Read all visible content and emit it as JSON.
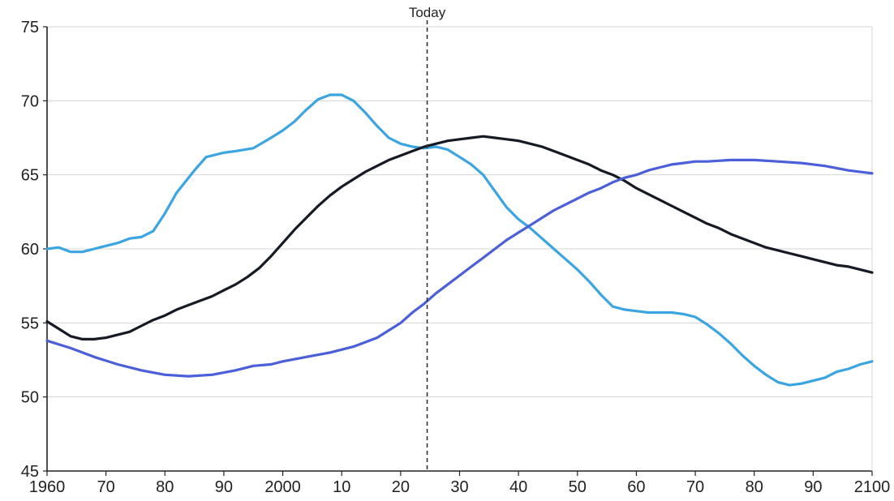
{
  "chart_data": {
    "type": "line",
    "title": "",
    "xlabel": "",
    "ylabel": "",
    "xlim": [
      1960,
      2100
    ],
    "ylim": [
      45,
      75
    ],
    "grid": true,
    "legend": "none",
    "x_ticks": [
      1960,
      1970,
      1980,
      1990,
      2000,
      2010,
      2020,
      2030,
      2040,
      2050,
      2060,
      2070,
      2080,
      2090,
      2100
    ],
    "x_tick_labels": [
      "1960",
      "70",
      "80",
      "90",
      "2000",
      "10",
      "20",
      "30",
      "40",
      "50",
      "60",
      "70",
      "80",
      "90",
      "2100"
    ],
    "y_ticks": [
      45,
      50,
      55,
      60,
      65,
      70,
      75
    ],
    "y_tick_labels": [
      "45",
      "50",
      "55",
      "60",
      "65",
      "70",
      "75"
    ],
    "annotation": {
      "label": "Today",
      "x": 2024.5,
      "style": "dashed"
    },
    "series": [
      {
        "color": "#3aa5e0",
        "points": [
          [
            1960,
            60.0
          ],
          [
            1962,
            60.1
          ],
          [
            1964,
            59.8
          ],
          [
            1966,
            59.8
          ],
          [
            1968,
            60.0
          ],
          [
            1970,
            60.2
          ],
          [
            1972,
            60.4
          ],
          [
            1974,
            60.7
          ],
          [
            1976,
            60.8
          ],
          [
            1978,
            61.2
          ],
          [
            1980,
            62.4
          ],
          [
            1982,
            63.8
          ],
          [
            1985,
            65.3
          ],
          [
            1987,
            66.2
          ],
          [
            1990,
            66.5
          ],
          [
            1992,
            66.6
          ],
          [
            1995,
            66.8
          ],
          [
            1998,
            67.5
          ],
          [
            2000,
            68.0
          ],
          [
            2002,
            68.6
          ],
          [
            2004,
            69.4
          ],
          [
            2006,
            70.1
          ],
          [
            2008,
            70.4
          ],
          [
            2010,
            70.4
          ],
          [
            2012,
            70.0
          ],
          [
            2014,
            69.2
          ],
          [
            2016,
            68.3
          ],
          [
            2018,
            67.5
          ],
          [
            2020,
            67.1
          ],
          [
            2022,
            66.9
          ],
          [
            2024,
            66.8
          ],
          [
            2026,
            66.9
          ],
          [
            2028,
            66.7
          ],
          [
            2030,
            66.2
          ],
          [
            2032,
            65.7
          ],
          [
            2034,
            65.0
          ],
          [
            2036,
            63.9
          ],
          [
            2038,
            62.8
          ],
          [
            2040,
            62.0
          ],
          [
            2042,
            61.4
          ],
          [
            2044,
            60.7
          ],
          [
            2046,
            60.0
          ],
          [
            2048,
            59.3
          ],
          [
            2050,
            58.6
          ],
          [
            2052,
            57.8
          ],
          [
            2054,
            56.9
          ],
          [
            2056,
            56.1
          ],
          [
            2058,
            55.9
          ],
          [
            2060,
            55.8
          ],
          [
            2062,
            55.7
          ],
          [
            2064,
            55.7
          ],
          [
            2066,
            55.7
          ],
          [
            2068,
            55.6
          ],
          [
            2070,
            55.4
          ],
          [
            2072,
            54.9
          ],
          [
            2074,
            54.3
          ],
          [
            2076,
            53.6
          ],
          [
            2078,
            52.8
          ],
          [
            2080,
            52.1
          ],
          [
            2082,
            51.5
          ],
          [
            2084,
            51.0
          ],
          [
            2086,
            50.8
          ],
          [
            2088,
            50.9
          ],
          [
            2090,
            51.1
          ],
          [
            2092,
            51.3
          ],
          [
            2094,
            51.7
          ],
          [
            2096,
            51.9
          ],
          [
            2098,
            52.2
          ],
          [
            2100,
            52.4
          ]
        ]
      },
      {
        "color": "#151a24",
        "points": [
          [
            1960,
            55.1
          ],
          [
            1962,
            54.6
          ],
          [
            1964,
            54.1
          ],
          [
            1966,
            53.9
          ],
          [
            1968,
            53.9
          ],
          [
            1970,
            54.0
          ],
          [
            1972,
            54.2
          ],
          [
            1974,
            54.4
          ],
          [
            1976,
            54.8
          ],
          [
            1978,
            55.2
          ],
          [
            1980,
            55.5
          ],
          [
            1982,
            55.9
          ],
          [
            1984,
            56.2
          ],
          [
            1986,
            56.5
          ],
          [
            1988,
            56.8
          ],
          [
            1990,
            57.2
          ],
          [
            1992,
            57.6
          ],
          [
            1994,
            58.1
          ],
          [
            1996,
            58.7
          ],
          [
            1998,
            59.5
          ],
          [
            2000,
            60.4
          ],
          [
            2002,
            61.3
          ],
          [
            2004,
            62.1
          ],
          [
            2006,
            62.9
          ],
          [
            2008,
            63.6
          ],
          [
            2010,
            64.2
          ],
          [
            2012,
            64.7
          ],
          [
            2014,
            65.2
          ],
          [
            2016,
            65.6
          ],
          [
            2018,
            66.0
          ],
          [
            2020,
            66.3
          ],
          [
            2022,
            66.6
          ],
          [
            2024,
            66.9
          ],
          [
            2026,
            67.1
          ],
          [
            2028,
            67.3
          ],
          [
            2030,
            67.4
          ],
          [
            2032,
            67.5
          ],
          [
            2034,
            67.6
          ],
          [
            2036,
            67.5
          ],
          [
            2038,
            67.4
          ],
          [
            2040,
            67.3
          ],
          [
            2042,
            67.1
          ],
          [
            2044,
            66.9
          ],
          [
            2046,
            66.6
          ],
          [
            2048,
            66.3
          ],
          [
            2050,
            66.0
          ],
          [
            2052,
            65.7
          ],
          [
            2054,
            65.3
          ],
          [
            2056,
            65.0
          ],
          [
            2058,
            64.6
          ],
          [
            2060,
            64.1
          ],
          [
            2062,
            63.7
          ],
          [
            2064,
            63.3
          ],
          [
            2066,
            62.9
          ],
          [
            2068,
            62.5
          ],
          [
            2070,
            62.1
          ],
          [
            2072,
            61.7
          ],
          [
            2074,
            61.4
          ],
          [
            2076,
            61.0
          ],
          [
            2078,
            60.7
          ],
          [
            2080,
            60.4
          ],
          [
            2082,
            60.1
          ],
          [
            2084,
            59.9
          ],
          [
            2086,
            59.7
          ],
          [
            2088,
            59.5
          ],
          [
            2090,
            59.3
          ],
          [
            2092,
            59.1
          ],
          [
            2094,
            58.9
          ],
          [
            2096,
            58.8
          ],
          [
            2098,
            58.6
          ],
          [
            2100,
            58.4
          ]
        ]
      },
      {
        "color": "#4a5fd8",
        "points": [
          [
            1960,
            53.8
          ],
          [
            1964,
            53.3
          ],
          [
            1968,
            52.7
          ],
          [
            1972,
            52.2
          ],
          [
            1976,
            51.8
          ],
          [
            1980,
            51.5
          ],
          [
            1984,
            51.4
          ],
          [
            1988,
            51.5
          ],
          [
            1992,
            51.8
          ],
          [
            1995,
            52.1
          ],
          [
            1998,
            52.2
          ],
          [
            2000,
            52.4
          ],
          [
            2004,
            52.7
          ],
          [
            2008,
            53.0
          ],
          [
            2012,
            53.4
          ],
          [
            2016,
            54.0
          ],
          [
            2018,
            54.5
          ],
          [
            2020,
            55.0
          ],
          [
            2022,
            55.7
          ],
          [
            2024,
            56.3
          ],
          [
            2026,
            57.0
          ],
          [
            2028,
            57.6
          ],
          [
            2030,
            58.2
          ],
          [
            2032,
            58.8
          ],
          [
            2034,
            59.4
          ],
          [
            2036,
            60.0
          ],
          [
            2038,
            60.6
          ],
          [
            2040,
            61.1
          ],
          [
            2042,
            61.6
          ],
          [
            2044,
            62.1
          ],
          [
            2046,
            62.6
          ],
          [
            2048,
            63.0
          ],
          [
            2050,
            63.4
          ],
          [
            2052,
            63.8
          ],
          [
            2054,
            64.1
          ],
          [
            2056,
            64.5
          ],
          [
            2058,
            64.8
          ],
          [
            2060,
            65.0
          ],
          [
            2062,
            65.3
          ],
          [
            2064,
            65.5
          ],
          [
            2066,
            65.7
          ],
          [
            2068,
            65.8
          ],
          [
            2070,
            65.9
          ],
          [
            2072,
            65.9
          ],
          [
            2076,
            66.0
          ],
          [
            2080,
            66.0
          ],
          [
            2084,
            65.9
          ],
          [
            2088,
            65.8
          ],
          [
            2092,
            65.6
          ],
          [
            2096,
            65.3
          ],
          [
            2100,
            65.1
          ]
        ]
      }
    ]
  }
}
